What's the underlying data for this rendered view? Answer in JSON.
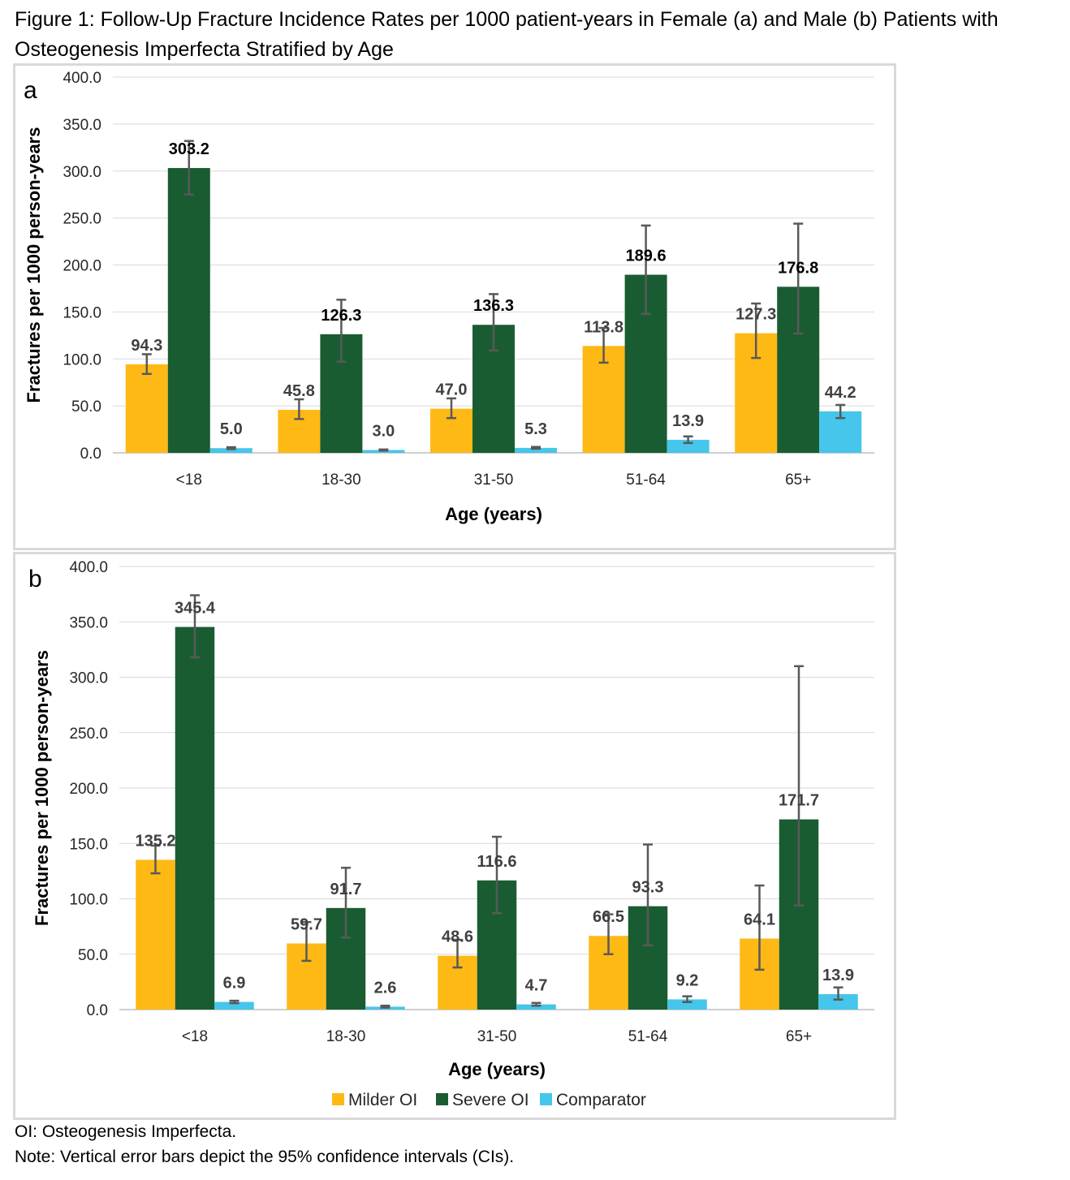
{
  "figure": {
    "title": "Figure 1: Follow-Up Fracture Incidence Rates per 1000 patient-years in Female (a) and Male (b) Patients with Osteogenesis Imperfecta Stratified by Age",
    "footnotes": [
      "OI: Osteogenesis Imperfecta.",
      "Note: Vertical error bars depict the 95% confidence intervals (CIs)."
    ],
    "colors": {
      "Milder OI": "#ffb915",
      "Severe OI": "#1a5c31",
      "Comparator": "#45c6ea",
      "grid": "#d9d9d9",
      "errorbar": "#595959",
      "label": "#404040"
    }
  },
  "chart_data": [
    {
      "panel_label": "a",
      "type": "bar",
      "categories": [
        "<18",
        "18-30",
        "31-50",
        "51-64",
        "65+"
      ],
      "xlabel": "Age (years)",
      "ylabel": "Fractures per 1000 person-years",
      "ylim": [
        0,
        400
      ],
      "yticks": [
        "0.0",
        "50.0",
        "100.0",
        "150.0",
        "200.0",
        "250.0",
        "300.0",
        "350.0",
        "400.0"
      ],
      "grid": true,
      "series": [
        {
          "name": "Milder OI",
          "values": [
            94.3,
            45.8,
            47.0,
            113.8,
            127.3
          ],
          "labels": [
            "94.3",
            "45.8",
            "47.0",
            "113.8",
            "127.3"
          ],
          "ci_low": [
            84,
            36,
            37,
            96,
            101
          ],
          "ci_high": [
            105,
            57,
            58,
            133,
            159
          ]
        },
        {
          "name": "Severe OI",
          "values": [
            303.2,
            126.3,
            136.3,
            189.6,
            176.8
          ],
          "labels": [
            "303.2",
            "126.3",
            "136.3",
            "189.6",
            "176.8"
          ],
          "ci_low": [
            275,
            97,
            109,
            148,
            127
          ],
          "ci_high": [
            332,
            163,
            169,
            242,
            244
          ]
        },
        {
          "name": "Comparator",
          "values": [
            5.0,
            3.0,
            5.3,
            13.9,
            44.2
          ],
          "labels": [
            "5.0",
            "3.0",
            "5.3",
            "13.9",
            "44.2"
          ],
          "ci_low": [
            4.0,
            2.4,
            4.4,
            10.5,
            37
          ],
          "ci_high": [
            6.0,
            3.6,
            6.3,
            17.5,
            51
          ]
        }
      ]
    },
    {
      "panel_label": "b",
      "type": "bar",
      "categories": [
        "<18",
        "18-30",
        "31-50",
        "51-64",
        "65+"
      ],
      "xlabel": "Age (years)",
      "ylabel": "Fractures per 1000 person-years",
      "ylim": [
        0,
        400
      ],
      "yticks": [
        "0.0",
        "50.0",
        "100.0",
        "150.0",
        "200.0",
        "250.0",
        "300.0",
        "350.0",
        "400.0"
      ],
      "grid": true,
      "legend_position": "bottom",
      "series": [
        {
          "name": "Milder OI",
          "values": [
            135.2,
            59.7,
            48.6,
            66.5,
            64.1
          ],
          "labels": [
            "135.2",
            "59.7",
            "48.6",
            "66.5",
            "64.1"
          ],
          "ci_low": [
            123,
            44,
            38,
            50,
            36
          ],
          "ci_high": [
            148,
            79,
            63,
            86,
            112
          ]
        },
        {
          "name": "Severe OI",
          "values": [
            345.4,
            91.7,
            116.6,
            93.3,
            171.7
          ],
          "labels": [
            "345.4",
            "91.7",
            "116.6",
            "93.3",
            "171.7"
          ],
          "ci_low": [
            318,
            65,
            87,
            58,
            94
          ],
          "ci_high": [
            374,
            128,
            156,
            149,
            310
          ]
        },
        {
          "name": "Comparator",
          "values": [
            6.9,
            2.6,
            4.7,
            9.2,
            13.9
          ],
          "labels": [
            "6.9",
            "2.6",
            "4.7",
            "9.2",
            "13.9"
          ],
          "ci_low": [
            5.8,
            1.8,
            3.5,
            6.8,
            9.0
          ],
          "ci_high": [
            8.0,
            3.5,
            6.0,
            12.0,
            20.0
          ]
        }
      ]
    }
  ]
}
